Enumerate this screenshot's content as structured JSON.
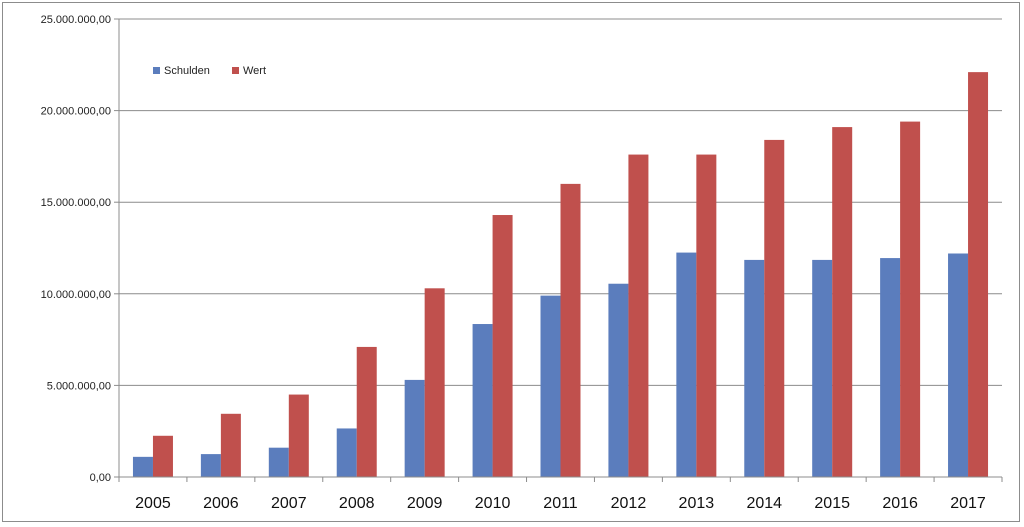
{
  "chart_data": {
    "type": "bar",
    "title": "",
    "xlabel": "",
    "ylabel": "",
    "categories": [
      "2005",
      "2006",
      "2007",
      "2008",
      "2009",
      "2010",
      "2011",
      "2012",
      "2013",
      "2014",
      "2015",
      "2016",
      "2017"
    ],
    "series": [
      {
        "name": "Schulden",
        "color": "#5b7dbd",
        "values": [
          1100000,
          1250000,
          1600000,
          2650000,
          5300000,
          8350000,
          9900000,
          10550000,
          12250000,
          11850000,
          11850000,
          11950000,
          12200000
        ]
      },
      {
        "name": "Wert",
        "color": "#c0504d",
        "values": [
          2250000,
          3450000,
          4500000,
          7100000,
          10300000,
          14300000,
          16000000,
          17600000,
          17600000,
          18400000,
          19100000,
          19400000,
          22100000
        ]
      }
    ],
    "ylim": [
      0,
      25000000
    ],
    "yticks": [
      0,
      5000000,
      10000000,
      15000000,
      20000000,
      25000000
    ],
    "ytick_labels": [
      "0,00",
      "5.000.000,00",
      "10.000.000,00",
      "15.000.000,00",
      "20.000.000,00",
      "25.000.000,00"
    ],
    "grid": true,
    "legend_position": "top-left"
  }
}
